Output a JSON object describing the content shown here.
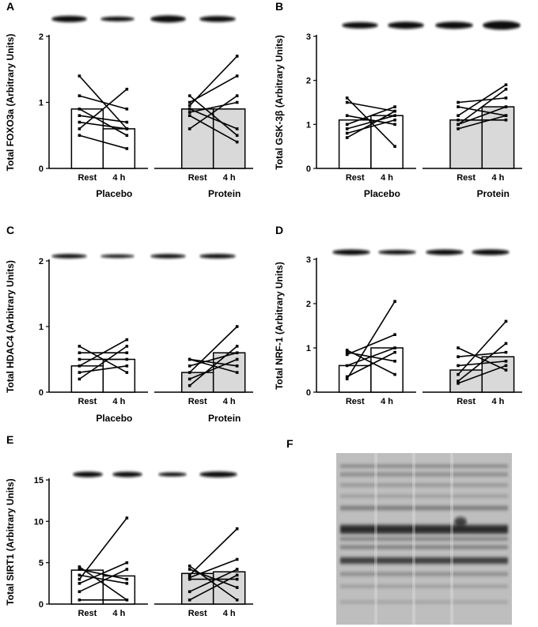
{
  "chart_data": [
    {
      "panel": "A",
      "type": "bar",
      "ylabel": "Total FOXO3a (Arbitrary Units)",
      "ylim": [
        0,
        2
      ],
      "yticks": [
        "0",
        "1",
        "2"
      ],
      "categories": [
        "Rest",
        "4 h",
        "Rest",
        "4 h"
      ],
      "groups": [
        "Placebo",
        "Protein"
      ],
      "values": [
        0.9,
        0.6,
        0.9,
        0.9
      ],
      "fills": [
        "#ffffff",
        "#ffffff",
        "#d9d9d9",
        "#d9d9d9"
      ],
      "individual_lines": [
        [
          [
            1.4,
            0.6
          ],
          [
            1.1,
            0.9
          ],
          [
            0.9,
            0.5
          ],
          [
            0.8,
            0.7
          ],
          [
            0.7,
            0.6
          ],
          [
            0.6,
            1.2
          ],
          [
            0.5,
            0.3
          ]
        ],
        [
          [
            1.1,
            0.5
          ],
          [
            1.0,
            1.4
          ],
          [
            0.95,
            1.7
          ],
          [
            0.9,
            0.6
          ],
          [
            0.85,
            1.0
          ],
          [
            0.8,
            0.4
          ],
          [
            0.6,
            1.1
          ]
        ]
      ],
      "blot_intensity": [
        1.0,
        0.85,
        1.0,
        0.95
      ]
    },
    {
      "panel": "B",
      "type": "bar",
      "ylabel": "Total GSK-3β (Arbitrary Units)",
      "ylim": [
        0,
        3
      ],
      "yticks": [
        "0",
        "1",
        "2",
        "3"
      ],
      "categories": [
        "Rest",
        "4 h",
        "Rest",
        "4 h"
      ],
      "groups": [
        "Placebo",
        "Protein"
      ],
      "values": [
        1.1,
        1.2,
        1.1,
        1.4
      ],
      "fills": [
        "#ffffff",
        "#ffffff",
        "#d9d9d9",
        "#d9d9d9"
      ],
      "individual_lines": [
        [
          [
            1.6,
            0.5
          ],
          [
            1.5,
            1.3
          ],
          [
            1.2,
            1.0
          ],
          [
            1.0,
            1.4
          ],
          [
            0.9,
            1.2
          ],
          [
            0.8,
            1.1
          ],
          [
            0.7,
            1.3
          ]
        ],
        [
          [
            1.5,
            1.6
          ],
          [
            1.4,
            1.2
          ],
          [
            1.2,
            1.9
          ],
          [
            1.1,
            1.1
          ],
          [
            1.0,
            1.8
          ],
          [
            1.0,
            1.4
          ],
          [
            0.9,
            1.2
          ]
        ]
      ],
      "blot_intensity": [
        0.9,
        1.0,
        1.0,
        1.1
      ]
    },
    {
      "panel": "C",
      "type": "bar",
      "ylabel": "Total HDAC4 (Arbitrary Units)",
      "ylim": [
        0,
        2
      ],
      "yticks": [
        "0",
        "1",
        "2"
      ],
      "categories": [
        "Rest",
        "4 h",
        "Rest",
        "4 h"
      ],
      "groups": [
        "Placebo",
        "Protein"
      ],
      "values": [
        0.4,
        0.5,
        0.3,
        0.6
      ],
      "fills": [
        "#ffffff",
        "#ffffff",
        "#d9d9d9",
        "#d9d9d9"
      ],
      "individual_lines": [
        [
          [
            0.7,
            0.3
          ],
          [
            0.6,
            0.6
          ],
          [
            0.5,
            0.5
          ],
          [
            0.4,
            0.8
          ],
          [
            0.3,
            0.4
          ],
          [
            0.2,
            0.7
          ]
        ],
        [
          [
            0.5,
            0.3
          ],
          [
            0.4,
            0.6
          ],
          [
            0.3,
            1.0
          ],
          [
            0.2,
            0.5
          ],
          [
            0.1,
            0.7
          ],
          [
            0.5,
            0.4
          ]
        ]
      ],
      "blot_intensity": [
        0.9,
        0.85,
        0.9,
        0.95
      ]
    },
    {
      "panel": "D",
      "type": "bar",
      "ylabel": "Total NRF-1 (Arbitrary Units)",
      "ylim": [
        0,
        3
      ],
      "yticks": [
        "0",
        "1",
        "2",
        "3"
      ],
      "categories": [
        "Rest",
        "4 h",
        "Rest",
        "4 h"
      ],
      "groups": [],
      "values": [
        0.6,
        1.0,
        0.5,
        0.8
      ],
      "fills": [
        "#ffffff",
        "#ffffff",
        "#d9d9d9",
        "#d9d9d9"
      ],
      "individual_lines": [
        [
          [
            0.95,
            0.4
          ],
          [
            0.9,
            0.7
          ],
          [
            0.85,
            1.3
          ],
          [
            0.6,
            1.0
          ],
          [
            0.3,
            2.05
          ],
          [
            0.35,
            0.9
          ]
        ],
        [
          [
            1.0,
            0.5
          ],
          [
            0.8,
            0.9
          ],
          [
            0.6,
            0.7
          ],
          [
            0.4,
            1.6
          ],
          [
            0.25,
            1.1
          ],
          [
            0.2,
            0.6
          ]
        ]
      ],
      "blot_intensity": [
        1.0,
        0.95,
        1.0,
        1.05
      ]
    },
    {
      "panel": "E",
      "type": "bar",
      "ylabel": "Total SIRT1 (Arbitrary Units)",
      "ylim": [
        0,
        15
      ],
      "yticks": [
        "0",
        "5",
        "10",
        "15"
      ],
      "categories": [
        "Rest",
        "4 h",
        "Rest",
        "4 h"
      ],
      "groups": [],
      "values": [
        4.1,
        3.4,
        3.7,
        3.9
      ],
      "fills": [
        "#ffffff",
        "#ffffff",
        "#d9d9d9",
        "#d9d9d9"
      ],
      "individual_lines": [
        [
          [
            4.5,
            0.5
          ],
          [
            4.2,
            3.0
          ],
          [
            3.5,
            2.5
          ],
          [
            3.0,
            10.4
          ],
          [
            2.5,
            5.0
          ],
          [
            1.5,
            4.2
          ],
          [
            0.5,
            0.5
          ]
        ],
        [
          [
            4.6,
            0.5
          ],
          [
            4.2,
            2.0
          ],
          [
            3.5,
            9.1
          ],
          [
            3.2,
            5.4
          ],
          [
            3.0,
            3.0
          ],
          [
            1.5,
            4.2
          ],
          [
            0.5,
            3.5
          ]
        ]
      ],
      "blot_intensity": [
        1.0,
        0.95,
        0.85,
        1.05
      ]
    }
  ],
  "panel_f": {
    "label": "F",
    "type": "stained-membrane"
  }
}
